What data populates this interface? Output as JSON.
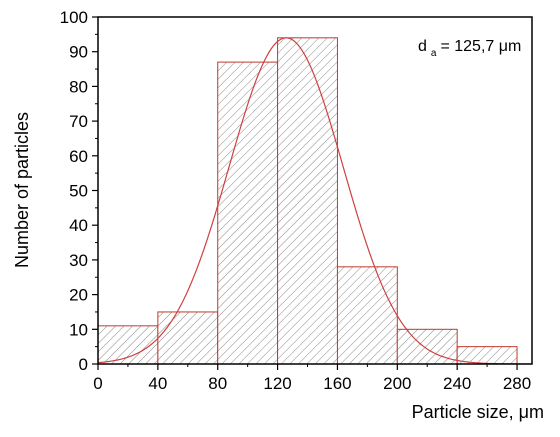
{
  "chart_data": {
    "type": "bar",
    "subtype": "histogram",
    "title": "",
    "xlabel": "Particle size, μm",
    "ylabel": "Number of particles",
    "xlim": [
      0,
      290
    ],
    "ylim": [
      0,
      100
    ],
    "x_ticks": [
      0,
      40,
      80,
      120,
      160,
      200,
      240,
      280
    ],
    "y_ticks": [
      0,
      10,
      20,
      30,
      40,
      50,
      60,
      70,
      80,
      90,
      100
    ],
    "bins": [
      {
        "from": 0,
        "to": 40,
        "count": 11
      },
      {
        "from": 40,
        "to": 80,
        "count": 15
      },
      {
        "from": 80,
        "to": 120,
        "count": 87
      },
      {
        "from": 120,
        "to": 160,
        "count": 94
      },
      {
        "from": 160,
        "to": 200,
        "count": 28
      },
      {
        "from": 200,
        "to": 240,
        "count": 10
      },
      {
        "from": 240,
        "to": 280,
        "count": 5
      }
    ],
    "fit_curve": {
      "type": "gaussian",
      "mean": 125.7,
      "sigma": 38,
      "peak": 94
    },
    "annotation": {
      "symbol": "d",
      "subscript": "a",
      "text": " = 125,7 μm"
    },
    "colors": {
      "bar_edge": "#c0392b",
      "hatch": "#8a8a8a",
      "curve": "#d04040",
      "axis": "#000000"
    },
    "grid": false,
    "legend": "none"
  }
}
